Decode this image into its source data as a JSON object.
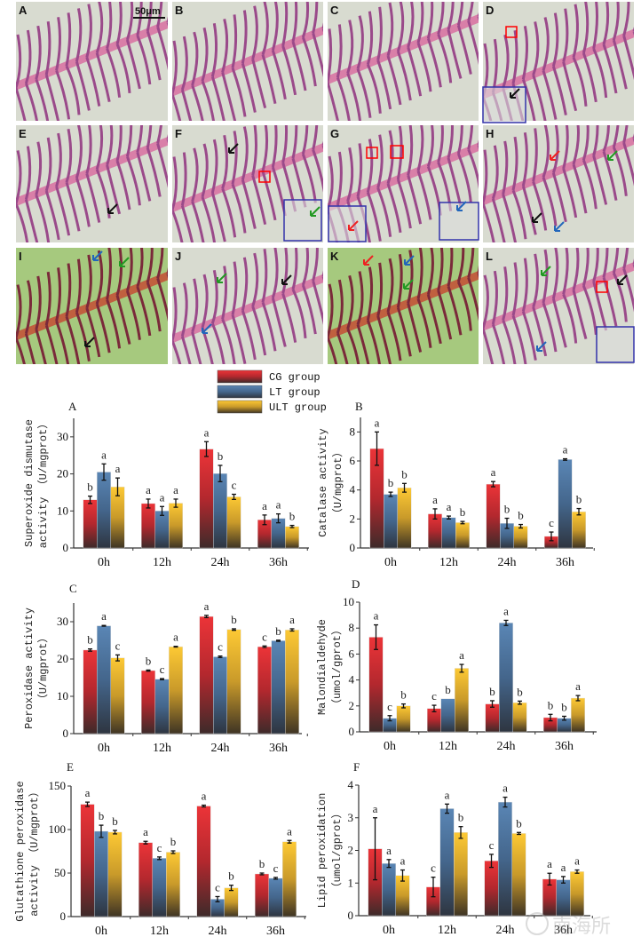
{
  "histology": {
    "panels": [
      "A",
      "B",
      "C",
      "D",
      "E",
      "F",
      "G",
      "H",
      "I",
      "J",
      "K",
      "L"
    ],
    "scale_bar": "50μm"
  },
  "legend": [
    {
      "name": "CG group",
      "color": "#e8343a"
    },
    {
      "name": "LT group",
      "color": "#4f7aa8"
    },
    {
      "name": "ULT group",
      "color": "#f7c531"
    }
  ],
  "watermark": "南海所",
  "chart_data": [
    {
      "type": "bar",
      "panel": "A",
      "categories": [
        "0h",
        "12h",
        "24h",
        "36h"
      ],
      "ylabel": [
        "Superoxide dismutase",
        "activity （U/mgprot）"
      ],
      "ylim": [
        0,
        35
      ],
      "yticks": [
        0,
        10,
        20,
        30
      ],
      "series": [
        {
          "name": "CG group",
          "values": [
            13,
            12,
            26.7,
            7.6
          ],
          "errors": [
            1,
            1.2,
            2,
            1.3
          ],
          "letters": [
            "b",
            "a",
            "a",
            "a"
          ]
        },
        {
          "name": "LT group",
          "values": [
            20.5,
            10,
            20.1,
            8
          ],
          "errors": [
            2.2,
            1.2,
            2.2,
            1.2
          ],
          "letters": [
            "a",
            "a",
            "b",
            "a"
          ]
        },
        {
          "name": "ULT group",
          "values": [
            16.5,
            12.1,
            13.8,
            5.8
          ],
          "errors": [
            2.4,
            1.1,
            0.7,
            0.3
          ],
          "letters": [
            "a",
            "a",
            "c",
            "b"
          ]
        }
      ]
    },
    {
      "type": "bar",
      "panel": "B",
      "categories": [
        "0h",
        "12h",
        "24h",
        "36h"
      ],
      "ylabel": [
        "Catalase activity",
        "（U/mgprot）"
      ],
      "ylim": [
        0,
        9
      ],
      "yticks": [
        0,
        2,
        4,
        6,
        8
      ],
      "series": [
        {
          "name": "CG group",
          "values": [
            6.85,
            2.35,
            4.4,
            0.8
          ],
          "errors": [
            1.15,
            0.35,
            0.18,
            0.3
          ],
          "letters": [
            "a",
            "a",
            "a",
            "c"
          ]
        },
        {
          "name": "LT group",
          "values": [
            3.7,
            2.1,
            1.7,
            6.1
          ],
          "errors": [
            0.15,
            0.1,
            0.35,
            0.05
          ],
          "letters": [
            "b",
            "a",
            "b",
            "a"
          ]
        },
        {
          "name": "ULT group",
          "values": [
            4.15,
            1.75,
            1.5,
            2.5
          ],
          "errors": [
            0.3,
            0.08,
            0.12,
            0.22
          ],
          "letters": [
            "b",
            "b",
            "b",
            "b"
          ]
        }
      ]
    },
    {
      "type": "bar",
      "panel": "C",
      "categories": [
        "0h",
        "12h",
        "24h",
        "36h"
      ],
      "ylabel": [
        "Peroxidase activity",
        "（U/mgprot）"
      ],
      "ylim": [
        0,
        35
      ],
      "yticks": [
        0,
        10,
        20,
        30
      ],
      "series": [
        {
          "name": "CG group",
          "values": [
            22.4,
            16.9,
            31.4,
            23.3
          ],
          "errors": [
            0.3,
            0.15,
            0.3,
            0.2
          ],
          "letters": [
            "b",
            "b",
            "a",
            "c"
          ]
        },
        {
          "name": "LT group",
          "values": [
            28.9,
            14.6,
            20.6,
            24.9
          ],
          "errors": [
            0.1,
            0.15,
            0.2,
            0.15
          ],
          "letters": [
            "a",
            "c",
            "c",
            "b"
          ]
        },
        {
          "name": "ULT group",
          "values": [
            20.3,
            23.3,
            27.9,
            27.8
          ],
          "errors": [
            0.8,
            0.1,
            0.2,
            0.3
          ],
          "letters": [
            "c",
            "a",
            "b",
            "a"
          ]
        }
      ]
    },
    {
      "type": "bar",
      "panel": "D",
      "categories": [
        "0h",
        "12h",
        "24h",
        "36h"
      ],
      "ylabel": [
        "Malondialdehyde",
        "（umol/gprot）"
      ],
      "ylim": [
        0,
        10
      ],
      "yticks": [
        0,
        2,
        4,
        6,
        8,
        10
      ],
      "series": [
        {
          "name": "CG group",
          "values": [
            7.3,
            1.8,
            2.15,
            1.1
          ],
          "errors": [
            0.95,
            0.25,
            0.25,
            0.25
          ],
          "letters": [
            "a",
            "c",
            "b",
            "b"
          ]
        },
        {
          "name": "LT group",
          "values": [
            1.05,
            2.55,
            8.4,
            1.05
          ],
          "errors": [
            0.2,
            0,
            0.2,
            0.15
          ],
          "letters": [
            "c",
            "b",
            "a",
            "b"
          ]
        },
        {
          "name": "ULT group",
          "values": [
            2.0,
            4.9,
            2.25,
            2.6
          ],
          "errors": [
            0.15,
            0.3,
            0.12,
            0.2
          ],
          "letters": [
            "b",
            "a",
            "b",
            "a"
          ]
        }
      ]
    },
    {
      "type": "bar",
      "panel": "E",
      "categories": [
        "0h",
        "12h",
        "24h",
        "36h"
      ],
      "ylabel": [
        "Glutathione peroxidase",
        "activity （U/mgprot）"
      ],
      "ylim": [
        0,
        150
      ],
      "yticks": [
        0,
        50,
        100,
        150
      ],
      "series": [
        {
          "name": "CG group",
          "values": [
            129,
            85,
            127,
            49
          ],
          "errors": [
            2.5,
            1.5,
            1,
            1
          ],
          "letters": [
            "a",
            "a",
            "a",
            "b"
          ]
        },
        {
          "name": "LT group",
          "values": [
            98,
            67,
            20,
            44
          ],
          "errors": [
            7,
            1.5,
            3,
            1
          ],
          "letters": [
            "b",
            "c",
            "c",
            "c"
          ]
        },
        {
          "name": "ULT group",
          "values": [
            97,
            74,
            33,
            86
          ],
          "errors": [
            2,
            1.5,
            3,
            1.5
          ],
          "letters": [
            "b",
            "b",
            "b",
            "a"
          ]
        }
      ]
    },
    {
      "type": "bar",
      "panel": "F",
      "categories": [
        "0h",
        "12h",
        "24h",
        "36h"
      ],
      "ylabel": [
        "Lipid peroxidation",
        "（umol/gprot）"
      ],
      "ylim": [
        0,
        4
      ],
      "yticks": [
        0,
        1,
        2,
        3,
        4
      ],
      "series": [
        {
          "name": "CG group",
          "values": [
            2.05,
            0.88,
            1.68,
            1.12
          ],
          "errors": [
            0.95,
            0.3,
            0.2,
            0.18
          ],
          "letters": [
            "a",
            "c",
            "c",
            "a"
          ]
        },
        {
          "name": "LT group",
          "values": [
            1.6,
            3.28,
            3.48,
            1.1
          ],
          "errors": [
            0.12,
            0.14,
            0.15,
            0.1
          ],
          "letters": [
            "a",
            "a",
            "a",
            "a"
          ]
        },
        {
          "name": "ULT group",
          "values": [
            1.23,
            2.55,
            2.52,
            1.35
          ],
          "errors": [
            0.17,
            0.18,
            0.03,
            0.05
          ],
          "letters": [
            "a",
            "b",
            "b",
            "a"
          ]
        }
      ]
    }
  ]
}
